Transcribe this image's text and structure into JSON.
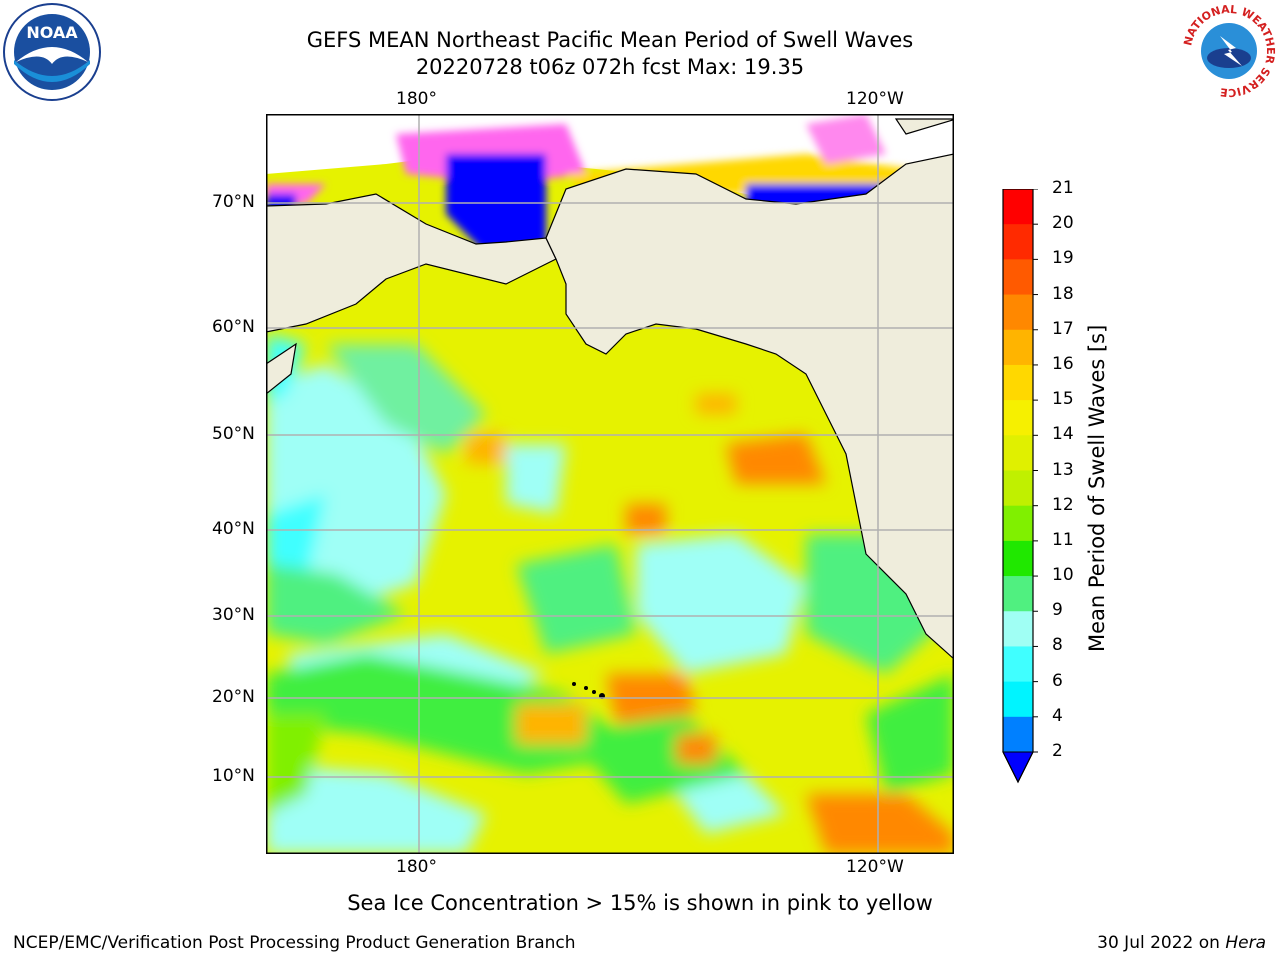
{
  "title": {
    "line1": "GEFS MEAN Northeast Pacific Mean Period of Swell Waves",
    "line2": "20220728 t06z 072h fcst   Max: 19.35"
  },
  "map": {
    "lon_labels_top": [
      "180°",
      "120°W"
    ],
    "lon_labels_bottom": [
      "180°",
      "120°W"
    ],
    "lat_labels": [
      "70°N",
      "60°N",
      "50°N",
      "40°N",
      "30°N",
      "20°N",
      "10°N"
    ],
    "land_color": "#efeddc",
    "grid_color": "#b0b0b0"
  },
  "colorbar": {
    "label": "Mean Period of Swell Waves [s]",
    "ticks": [
      "21",
      "20",
      "19",
      "18",
      "17",
      "16",
      "15",
      "14",
      "13",
      "12",
      "11",
      "10",
      "9",
      "8",
      "6",
      "4",
      "2"
    ],
    "colors": [
      "#ff0000",
      "#ff2a00",
      "#ff5a00",
      "#ff8800",
      "#ffb400",
      "#ffd800",
      "#f6f000",
      "#e0f000",
      "#c0f000",
      "#80f000",
      "#20e800",
      "#50f080",
      "#a0fff4",
      "#40ffff",
      "#00f4ff",
      "#0080ff"
    ],
    "extend_color": "#0000ff"
  },
  "caption": "Sea Ice Concentration > 15% is shown in pink to yellow",
  "footer": {
    "left": "NCEP/EMC/Verification Post Processing Product Generation Branch",
    "right_date": "30 Jul 2022 on ",
    "right_host": "Hera"
  },
  "logos": {
    "noaa": "NOAA",
    "nws_ring": "NATIONAL WEATHER SERVICE"
  }
}
